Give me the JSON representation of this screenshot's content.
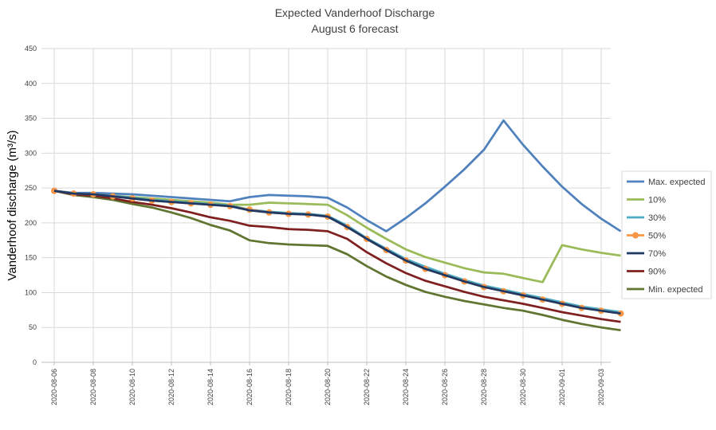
{
  "chart_data": {
    "type": "line",
    "title": "Expected Vanderhoof Discharge",
    "subtitle": "August 6 forecast",
    "xlabel": "",
    "ylabel": "Vanderhoof discharge (m³/s)",
    "ylim": [
      0,
      450
    ],
    "yticks": [
      0,
      50,
      100,
      150,
      200,
      250,
      300,
      350,
      400,
      450
    ],
    "grid": true,
    "legend_position": "right",
    "x": [
      "2020-08-06",
      "2020-08-07",
      "2020-08-08",
      "2020-08-09",
      "2020-08-10",
      "2020-08-11",
      "2020-08-12",
      "2020-08-13",
      "2020-08-14",
      "2020-08-15",
      "2020-08-16",
      "2020-08-17",
      "2020-08-18",
      "2020-08-19",
      "2020-08-20",
      "2020-08-21",
      "2020-08-22",
      "2020-08-23",
      "2020-08-24",
      "2020-08-25",
      "2020-08-26",
      "2020-08-27",
      "2020-08-28",
      "2020-08-29",
      "2020-08-30",
      "2020-08-31",
      "2020-09-01",
      "2020-09-02",
      "2020-09-03",
      "2020-09-04"
    ],
    "x_tick_labels": [
      "2020-08-06",
      "2020-08-08",
      "2020-08-10",
      "2020-08-12",
      "2020-08-14",
      "2020-08-16",
      "2020-08-18",
      "2020-08-20",
      "2020-08-22",
      "2020-08-24",
      "2020-08-26",
      "2020-08-28",
      "2020-08-30",
      "2020-09-01",
      "2020-09-03"
    ],
    "series": [
      {
        "name": "Max. expected",
        "color": "#4f81bd",
        "marker": false,
        "values": [
          246,
          243,
          243,
          242,
          241,
          239,
          237,
          235,
          233,
          231,
          237,
          240,
          239,
          238,
          236,
          222,
          204,
          188,
          207,
          228,
          252,
          277,
          305,
          347,
          312,
          281,
          252,
          227,
          206,
          188
        ]
      },
      {
        "name": "10%",
        "color": "#9bbb59",
        "marker": false,
        "values": [
          246,
          242,
          241,
          239,
          237,
          235,
          233,
          231,
          229,
          226,
          226,
          229,
          228,
          227,
          226,
          211,
          193,
          177,
          162,
          151,
          143,
          135,
          129,
          127,
          121,
          115,
          168,
          162,
          157,
          153
        ]
      },
      {
        "name": "30%",
        "color": "#4bacc6",
        "marker": false,
        "values": [
          246,
          242,
          241,
          239,
          236,
          233,
          231,
          229,
          227,
          225,
          219,
          216,
          214,
          213,
          210,
          196,
          178,
          163,
          148,
          137,
          127,
          118,
          110,
          104,
          98,
          92,
          86,
          80,
          76,
          72
        ]
      },
      {
        "name": "50%",
        "color": "#f79646",
        "marker": true,
        "values": [
          246,
          242,
          241,
          238,
          235,
          232,
          230,
          228,
          226,
          224,
          219,
          215,
          213,
          212,
          209,
          194,
          177,
          161,
          146,
          134,
          125,
          116,
          108,
          102,
          96,
          90,
          84,
          78,
          74,
          70
        ]
      },
      {
        "name": "70%",
        "color": "#1f3864",
        "marker": false,
        "values": [
          246,
          242,
          241,
          238,
          235,
          232,
          230,
          228,
          226,
          224,
          218,
          215,
          213,
          212,
          209,
          194,
          177,
          161,
          146,
          134,
          125,
          116,
          108,
          102,
          96,
          90,
          84,
          78,
          74,
          70
        ]
      },
      {
        "name": "90%",
        "color": "#7f1f1f",
        "marker": false,
        "values": [
          246,
          241,
          239,
          235,
          230,
          226,
          221,
          215,
          208,
          203,
          196,
          194,
          191,
          190,
          188,
          177,
          158,
          142,
          128,
          117,
          109,
          101,
          94,
          89,
          84,
          78,
          72,
          67,
          62,
          58
        ]
      },
      {
        "name": "Min. expected",
        "color": "#5f7530",
        "marker": false,
        "values": [
          246,
          240,
          237,
          233,
          227,
          222,
          215,
          207,
          197,
          189,
          175,
          171,
          169,
          168,
          167,
          155,
          138,
          123,
          111,
          101,
          94,
          88,
          83,
          78,
          74,
          68,
          61,
          55,
          50,
          46
        ]
      }
    ]
  }
}
